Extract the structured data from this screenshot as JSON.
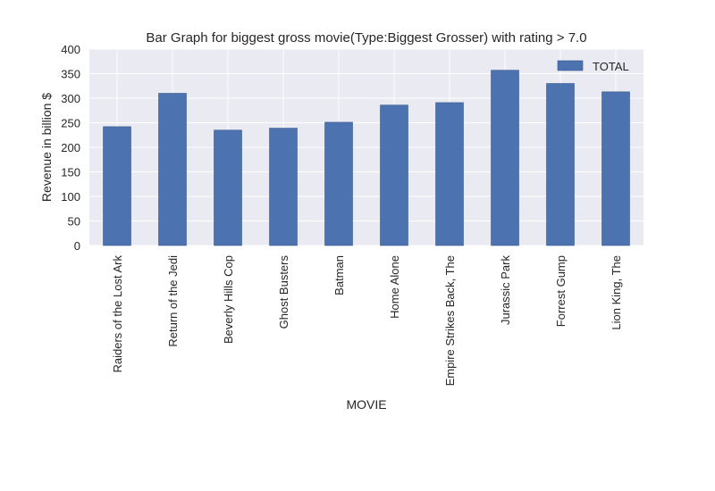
{
  "chart_data": {
    "type": "bar",
    "title": "Bar Graph for biggest gross movie(Type:Biggest Grosser) with rating > 7.0",
    "xlabel": "MOVIE",
    "ylabel": "Revenue in billion $",
    "categories": [
      "Raiders of the Lost Ark",
      "Return of the Jedi",
      "Beverly Hills Cop",
      "Ghost Busters",
      "Batman",
      "Home Alone",
      "Empire Strikes Back, The",
      "Jurassic Park",
      "Forrest Gump",
      "Lion King, The"
    ],
    "series": [
      {
        "name": "TOTAL",
        "color": "#4c72b0",
        "values": [
          242,
          310,
          235,
          239,
          251,
          286,
          291,
          357,
          330,
          313
        ]
      }
    ],
    "ylim": [
      0,
      400
    ],
    "yticks": [
      0,
      50,
      100,
      150,
      200,
      250,
      300,
      350,
      400
    ],
    "grid": true,
    "legend": "top-right",
    "colors": {
      "background": "#eaeaf2",
      "grid": "#ffffff",
      "bar": "#4c72b0"
    }
  }
}
